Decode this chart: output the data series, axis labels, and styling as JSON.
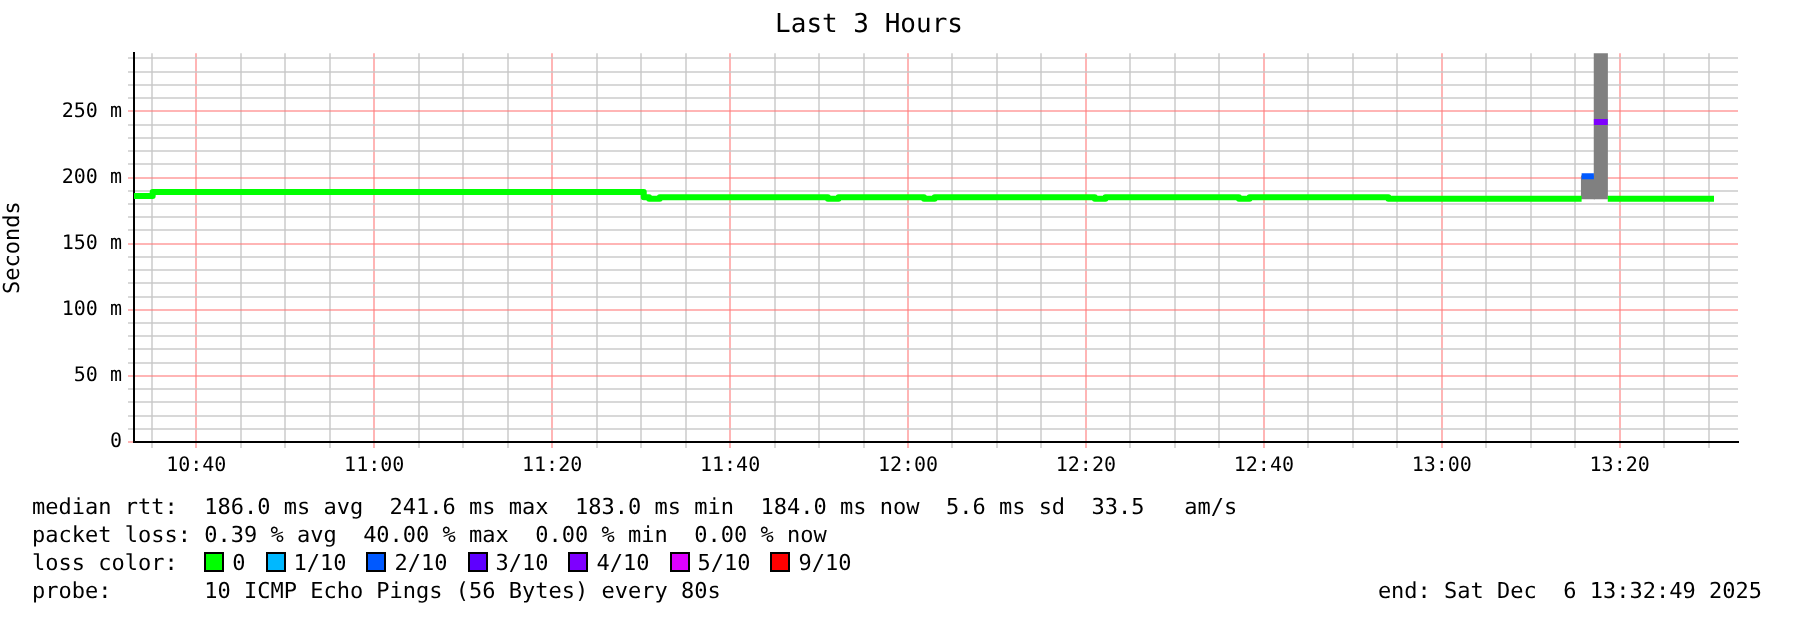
{
  "chart_data": {
    "type": "step",
    "title": "Last 3 Hours",
    "ylabel": "Seconds",
    "legend": "bottom",
    "legend_title": "loss color:",
    "grid": true,
    "line_style": "solid",
    "marker": "none",
    "xlim": [
      10.55,
      13.555
    ],
    "ylim": [
      0,
      294
    ],
    "xticks": [
      {
        "value": 10.5833,
        "label": null
      },
      {
        "value": 10.6667,
        "label": "10:40"
      },
      {
        "value": 10.75,
        "label": null
      },
      {
        "value": 10.8333,
        "label": null
      },
      {
        "value": 10.9167,
        "label": null
      },
      {
        "value": 11,
        "label": "11:00"
      },
      {
        "value": 11.0833,
        "label": null
      },
      {
        "value": 11.1667,
        "label": null
      },
      {
        "value": 11.25,
        "label": null
      },
      {
        "value": 11.3333,
        "label": "11:20"
      },
      {
        "value": 11.4167,
        "label": null
      },
      {
        "value": 11.5,
        "label": null
      },
      {
        "value": 11.5833,
        "label": null
      },
      {
        "value": 11.6667,
        "label": "11:40"
      },
      {
        "value": 11.75,
        "label": null
      },
      {
        "value": 11.8333,
        "label": null
      },
      {
        "value": 11.9167,
        "label": null
      },
      {
        "value": 12,
        "label": "12:00"
      },
      {
        "value": 12.0833,
        "label": null
      },
      {
        "value": 12.1667,
        "label": null
      },
      {
        "value": 12.25,
        "label": null
      },
      {
        "value": 12.3333,
        "label": "12:20"
      },
      {
        "value": 12.4167,
        "label": null
      },
      {
        "value": 12.5,
        "label": null
      },
      {
        "value": 12.5833,
        "label": null
      },
      {
        "value": 12.6667,
        "label": "12:40"
      },
      {
        "value": 12.75,
        "label": null
      },
      {
        "value": 12.8333,
        "label": null
      },
      {
        "value": 12.9167,
        "label": null
      },
      {
        "value": 13,
        "label": "13:00"
      },
      {
        "value": 13.0833,
        "label": null
      },
      {
        "value": 13.1667,
        "label": null
      },
      {
        "value": 13.25,
        "label": null
      },
      {
        "value": 13.3333,
        "label": "13:20"
      },
      {
        "value": 13.4167,
        "label": null
      },
      {
        "value": 13.5,
        "label": null
      }
    ],
    "yticks": [
      {
        "value": 0,
        "label": "0"
      },
      {
        "value": 10,
        "label": null
      },
      {
        "value": 20,
        "label": null
      },
      {
        "value": 30,
        "label": null
      },
      {
        "value": 40,
        "label": null
      },
      {
        "value": 50,
        "label": "50 m"
      },
      {
        "value": 60,
        "label": null
      },
      {
        "value": 70,
        "label": null
      },
      {
        "value": 80,
        "label": null
      },
      {
        "value": 90,
        "label": null
      },
      {
        "value": 100,
        "label": "100 m"
      },
      {
        "value": 110,
        "label": null
      },
      {
        "value": 120,
        "label": null
      },
      {
        "value": 130,
        "label": null
      },
      {
        "value": 140,
        "label": null
      },
      {
        "value": 150,
        "label": "150 m"
      },
      {
        "value": 160,
        "label": null
      },
      {
        "value": 170,
        "label": null
      },
      {
        "value": 180,
        "label": null
      },
      {
        "value": 190,
        "label": null
      },
      {
        "value": 200,
        "label": "200 m"
      },
      {
        "value": 210,
        "label": null
      },
      {
        "value": 220,
        "label": null
      },
      {
        "value": 230,
        "label": null
      },
      {
        "value": 240,
        "label": null
      },
      {
        "value": 250,
        "label": "250 m"
      },
      {
        "value": 260,
        "label": null
      },
      {
        "value": 270,
        "label": null
      },
      {
        "value": 280,
        "label": null
      },
      {
        "value": 290,
        "label": null
      }
    ],
    "series": [
      {
        "type": "bar",
        "color": "#808080",
        "x": [
          13.274,
          13.298
        ],
        "base": [
          184,
          184
        ],
        "values": [
          17,
          110
        ]
      },
      {
        "name": "0",
        "color": "#00ff00",
        "x": [
          10.55,
          10.585,
          10.6,
          11.505,
          11.515,
          11.535,
          11.85,
          11.87,
          12.03,
          12.05,
          12.35,
          12.37,
          12.62,
          12.64,
          12.9,
          12.92,
          13.262,
          13.263,
          13.311,
          13.51
        ],
        "values": [
          188,
          186,
          189,
          189,
          185,
          184,
          185,
          184,
          185,
          184,
          185,
          184,
          185,
          184,
          185,
          184,
          184,
          null,
          184,
          184
        ]
      },
      {
        "name": "1/10",
        "color": "#00b8ff"
      },
      {
        "name": "2/10",
        "color": "#0059ff",
        "x": [
          13.262,
          13.285
        ],
        "values": [
          201,
          201
        ]
      },
      {
        "name": "3/10",
        "color": "#5e00ff"
      },
      {
        "name": "4/10",
        "color": "#7e00ff",
        "x": [
          13.285,
          13.311
        ],
        "values": [
          242,
          242
        ]
      },
      {
        "name": "5/10",
        "color": "#dd00ff"
      },
      {
        "name": "9/10",
        "color": "#ff0000"
      }
    ],
    "annotations": [
      "median rtt:  186.0 ms avg  241.6 ms max  183.0 ms min  184.0 ms now  5.6 ms sd  33.5   am/s",
      "packet loss: 0.39 % avg  40.00 % max  0.00 % min  0.00 % now",
      "probe:       10 ICMP Echo Pings (56 Bytes) every 80s",
      "end: Sat Dec  6 13:32:49 2025"
    ]
  }
}
